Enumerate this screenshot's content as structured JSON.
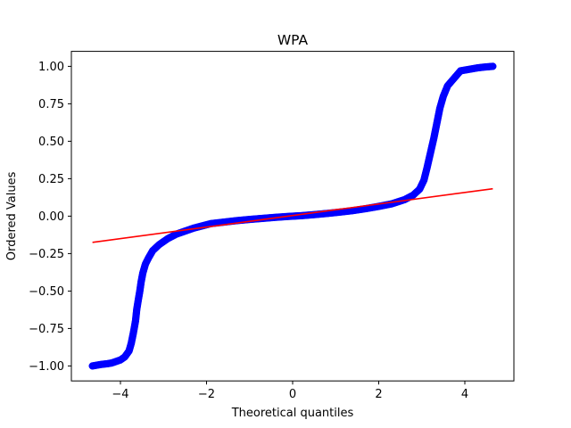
{
  "chart_data": {
    "type": "scatter",
    "title": "WPA",
    "xlabel": "Theoretical quantiles",
    "ylabel": "Ordered Values",
    "xlim": [
      -5.14,
      5.14
    ],
    "ylim": [
      -1.1,
      1.1
    ],
    "grid": false,
    "x_ticks": [
      -4,
      -2,
      0,
      2,
      4
    ],
    "x_tick_labels": [
      "−4",
      "−2",
      "0",
      "2",
      "4"
    ],
    "y_ticks": [
      -1.0,
      -0.75,
      -0.5,
      -0.25,
      0.0,
      0.25,
      0.5,
      0.75,
      1.0
    ],
    "y_tick_labels": [
      "−1.00",
      "−0.75",
      "−0.50",
      "−0.25",
      "0.00",
      "0.25",
      "0.50",
      "0.75",
      "1.00"
    ],
    "series": [
      {
        "kind": "points",
        "color": "#0000ff",
        "points": [
          [
            -4.65,
            -1.0
          ],
          [
            -4.45,
            -0.99
          ],
          [
            -4.3,
            -0.985
          ],
          [
            -4.2,
            -0.98
          ],
          [
            -4.1,
            -0.97
          ],
          [
            -4.0,
            -0.96
          ],
          [
            -3.9,
            -0.94
          ],
          [
            -3.8,
            -0.9
          ],
          [
            -3.75,
            -0.85
          ],
          [
            -3.7,
            -0.78
          ],
          [
            -3.65,
            -0.7
          ],
          [
            -3.62,
            -0.62
          ],
          [
            -3.58,
            -0.55
          ],
          [
            -3.55,
            -0.5
          ],
          [
            -3.52,
            -0.44
          ],
          [
            -3.48,
            -0.38
          ],
          [
            -3.42,
            -0.32
          ],
          [
            -3.35,
            -0.28
          ],
          [
            -3.25,
            -0.23
          ],
          [
            -3.1,
            -0.19
          ],
          [
            -2.9,
            -0.15
          ],
          [
            -2.7,
            -0.12
          ],
          [
            -2.5,
            -0.1
          ],
          [
            -2.3,
            -0.08
          ],
          [
            -2.1,
            -0.065
          ],
          [
            -1.9,
            -0.05
          ],
          [
            -1.6,
            -0.04
          ],
          [
            -1.3,
            -0.03
          ],
          [
            -1.0,
            -0.022
          ],
          [
            -0.7,
            -0.015
          ],
          [
            -0.4,
            -0.008
          ],
          [
            -0.1,
            -0.002
          ],
          [
            0.2,
            0.003
          ],
          [
            0.5,
            0.01
          ],
          [
            0.8,
            0.018
          ],
          [
            1.1,
            0.027
          ],
          [
            1.4,
            0.037
          ],
          [
            1.7,
            0.05
          ],
          [
            2.0,
            0.065
          ],
          [
            2.3,
            0.082
          ],
          [
            2.6,
            0.11
          ],
          [
            2.8,
            0.14
          ],
          [
            2.95,
            0.18
          ],
          [
            3.05,
            0.24
          ],
          [
            3.12,
            0.32
          ],
          [
            3.2,
            0.42
          ],
          [
            3.28,
            0.52
          ],
          [
            3.35,
            0.62
          ],
          [
            3.42,
            0.72
          ],
          [
            3.5,
            0.8
          ],
          [
            3.6,
            0.87
          ],
          [
            3.75,
            0.92
          ],
          [
            3.9,
            0.97
          ],
          [
            4.1,
            0.98
          ],
          [
            4.3,
            0.99
          ],
          [
            4.45,
            0.995
          ],
          [
            4.65,
            1.0
          ]
        ]
      },
      {
        "kind": "line",
        "color": "#ff0000",
        "x": [
          -4.65,
          4.65
        ],
        "y": [
          -0.175,
          0.183
        ]
      }
    ]
  }
}
